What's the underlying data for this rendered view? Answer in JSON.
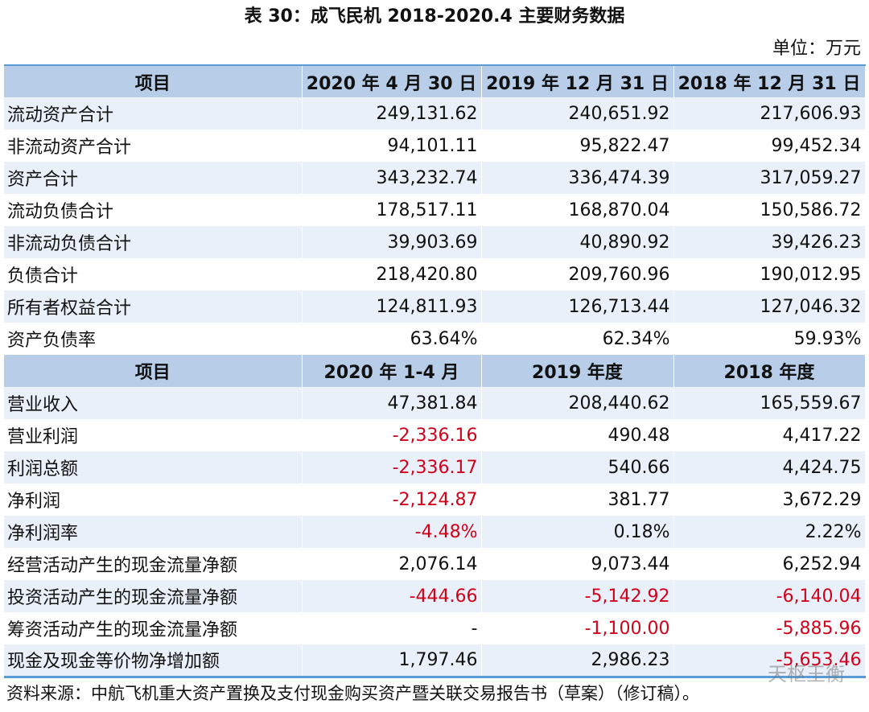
{
  "header": {
    "title": "表 30：成飞民机 2018-2020.4 主要财务数据",
    "unit": "单位：万元"
  },
  "table": {
    "sections": [
      {
        "columns": [
          "项目",
          "2020 年 4 月 30 日",
          "2019 年 12 月 31 日",
          "2018 年 12 月 31 日"
        ],
        "rows": [
          [
            "流动资产合计",
            "249,131.62",
            "240,651.92",
            "217,606.93"
          ],
          [
            "非流动资产合计",
            "94,101.11",
            "95,822.47",
            "99,452.34"
          ],
          [
            "资产合计",
            "343,232.74",
            "336,474.39",
            "317,059.27"
          ],
          [
            "流动负债合计",
            "178,517.11",
            "168,870.04",
            "150,586.72"
          ],
          [
            "非流动负债合计",
            "39,903.69",
            "40,890.92",
            "39,426.23"
          ],
          [
            "负债合计",
            "218,420.80",
            "209,760.96",
            "190,012.95"
          ],
          [
            "所有者权益合计",
            "124,811.93",
            "126,713.44",
            "127,046.32"
          ],
          [
            "资产负债率",
            "63.64%",
            "62.34%",
            "59.93%"
          ]
        ]
      },
      {
        "columns": [
          "项目",
          "2020 年 1-4 月",
          "2019 年度",
          "2018 年度"
        ],
        "rows": [
          [
            "营业收入",
            "47,381.84",
            "208,440.62",
            "165,559.67"
          ],
          [
            "营业利润",
            "-2,336.16",
            "490.48",
            "4,417.22"
          ],
          [
            "利润总额",
            "-2,336.17",
            "540.66",
            "4,424.75"
          ],
          [
            "净利润",
            "-2,124.87",
            "381.77",
            "3,672.29"
          ],
          [
            "净利润率",
            "-4.48%",
            "0.18%",
            "2.22%"
          ],
          [
            "经营活动产生的现金流量净额",
            "2,076.14",
            "9,073.44",
            "6,252.94"
          ],
          [
            "投资活动产生的现金流量净额",
            "-444.66",
            "-5,142.92",
            "-6,140.04"
          ],
          [
            "筹资活动产生的现金流量净额",
            "-",
            "-1,100.00",
            "-5,885.96"
          ],
          [
            "现金及现金等价物净增加额",
            "1,797.46",
            "2,986.23",
            "-5,653.46"
          ]
        ]
      }
    ]
  },
  "watermark": "天枢王衡",
  "source": "资料来源：中航飞机重大资产置换及支付现金购买资产暨关联交易报告书（草案）（修订稿）。"
}
